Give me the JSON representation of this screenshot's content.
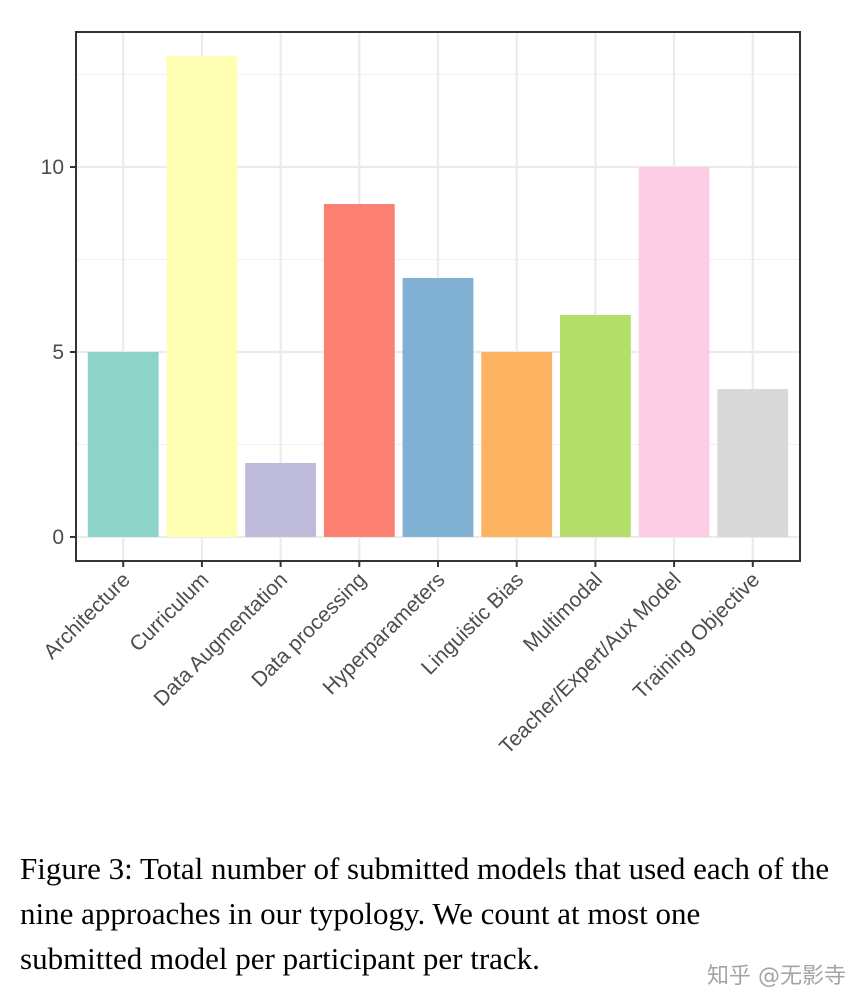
{
  "chart_data": {
    "type": "bar",
    "categories": [
      "Architecture",
      "Curriculum",
      "Data Augmentation",
      "Data processing",
      "Hyperparameters",
      "Linguistic Bias",
      "Multimodal",
      "Teacher/Expert/Aux Model",
      "Training Objective"
    ],
    "values": [
      5,
      13,
      2,
      9,
      7,
      5,
      6,
      10,
      4
    ],
    "colors": [
      "#8DD3C7",
      "#FFFFB3",
      "#BEBADA",
      "#FB8072",
      "#80B1D3",
      "#FDB462",
      "#B3DE69",
      "#FCCDE5",
      "#D9D9D9"
    ],
    "yticks": [
      0,
      5,
      10
    ],
    "ylim": [
      -0.65,
      13.65
    ],
    "grid": true,
    "title": "",
    "xlabel": "",
    "ylabel": ""
  },
  "caption": "Figure 3: Total number of submitted models that used each of the nine approaches in our typology. We count at most one submitted model per participant per track.",
  "watermark": "知乎 @无影寺"
}
